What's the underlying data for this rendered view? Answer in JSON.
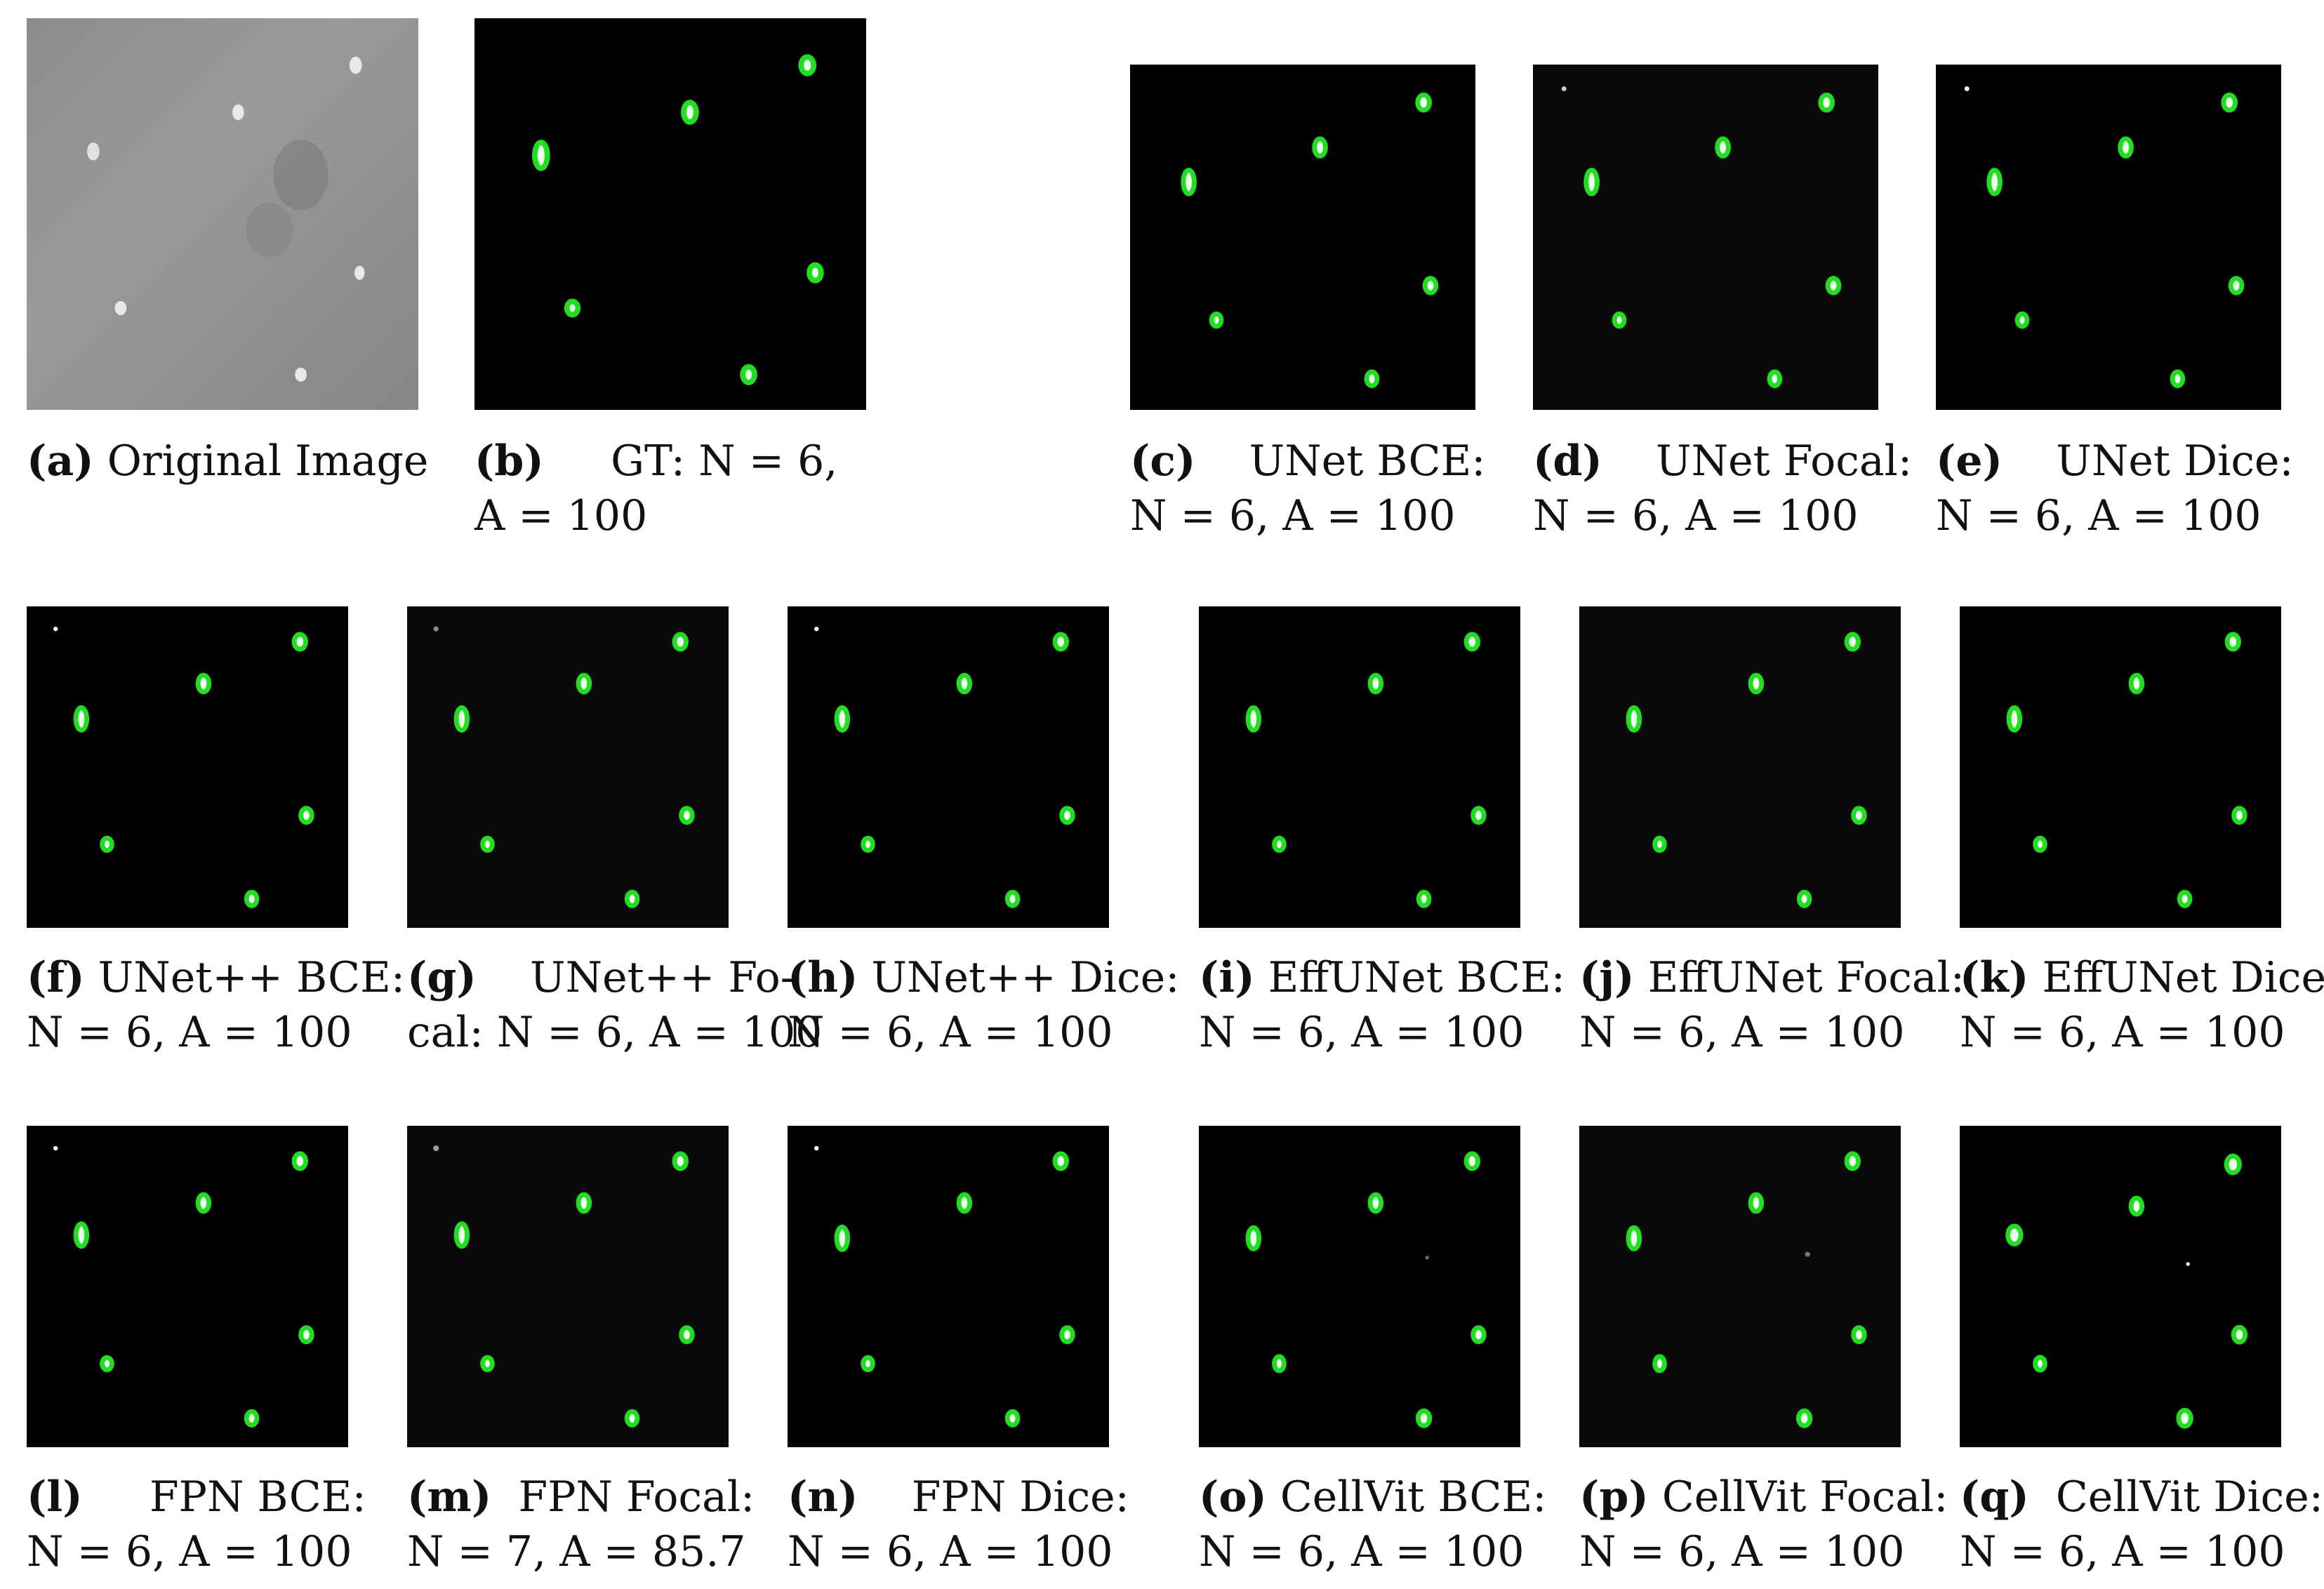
{
  "panels": [
    {
      "id": "a",
      "label": "Original Image",
      "stats": "",
      "kind": "original"
    },
    {
      "id": "b",
      "label": "GT: N = 6,",
      "stats": "A = 100",
      "kind": "mask"
    },
    {
      "id": "c",
      "label": "UNet BCE:",
      "stats": "N = 6, A = 100",
      "kind": "mask"
    },
    {
      "id": "d",
      "label": "UNet Focal:",
      "stats": "N = 6, A = 100",
      "kind": "mask"
    },
    {
      "id": "e",
      "label": "UNet Dice:",
      "stats": "N = 6, A = 100",
      "kind": "mask"
    },
    {
      "id": "f",
      "label": "UNet++ BCE:",
      "stats": "N = 6, A = 100",
      "kind": "mask"
    },
    {
      "id": "g",
      "label": "UNet++ Fo-",
      "stats": "cal: N = 6, A = 100",
      "kind": "mask"
    },
    {
      "id": "h",
      "label": "UNet++ Dice:",
      "stats": "N = 6, A = 100",
      "kind": "mask"
    },
    {
      "id": "i",
      "label": "EffUNet BCE:",
      "stats": "N = 6, A = 100",
      "kind": "mask"
    },
    {
      "id": "j",
      "label": "EffUNet Focal:",
      "stats": "N = 6, A = 100",
      "kind": "mask"
    },
    {
      "id": "k",
      "label": "EffUNet Dice:",
      "stats": "N = 6, A = 100",
      "kind": "mask"
    },
    {
      "id": "l",
      "label": "FPN BCE:",
      "stats": "N = 6, A = 100",
      "kind": "mask"
    },
    {
      "id": "m",
      "label": "FPN Focal:",
      "stats": "N = 7, A = 85.7",
      "kind": "mask"
    },
    {
      "id": "n",
      "label": "FPN Dice:",
      "stats": "N = 6, A = 100",
      "kind": "mask"
    },
    {
      "id": "o",
      "label": "CellVit BCE:",
      "stats": "N = 6, A = 100",
      "kind": "mask"
    },
    {
      "id": "p",
      "label": "CellVit Focal:",
      "stats": "N = 6, A = 100",
      "kind": "mask"
    },
    {
      "id": "q",
      "label": "CellVit Dice:",
      "stats": "N = 6, A = 100",
      "kind": "mask"
    }
  ],
  "colors": {
    "cell_outline": "#22dd22",
    "cell_fill": "#eaffea",
    "background": "#000000"
  }
}
